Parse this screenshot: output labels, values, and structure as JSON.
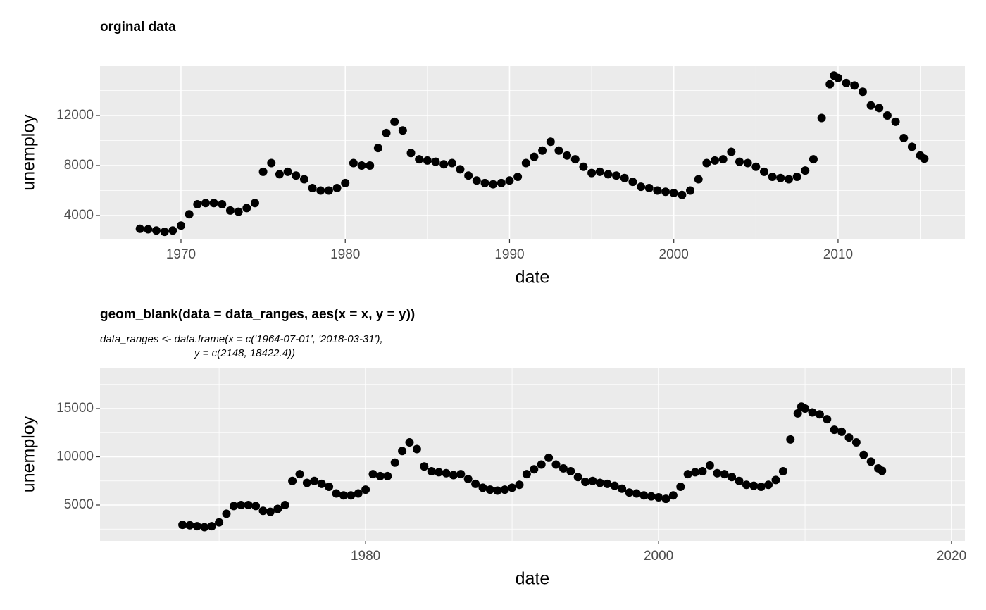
{
  "chart_data": [
    {
      "type": "scatter",
      "title": "orginal data",
      "x_label": "date",
      "y_label": "unemploy",
      "xlim": [
        1965.07,
        2017.72
      ],
      "xticks": [
        1970,
        1980,
        1990,
        2000,
        2010
      ],
      "minor_xticks": [
        1975,
        1985,
        1995,
        2005,
        2015
      ],
      "ylim": [
        2085,
        16000
      ],
      "yticks": [
        4000,
        8000,
        12000
      ],
      "minor_yticks": [
        6000,
        10000,
        14000
      ],
      "grid": true,
      "color": "#000000",
      "x": [
        1967.5,
        1968,
        1968.5,
        1969,
        1969.5,
        1970,
        1970.5,
        1971,
        1971.5,
        1972,
        1972.5,
        1973,
        1973.5,
        1974,
        1974.5,
        1975,
        1975.5,
        1976,
        1976.5,
        1977,
        1977.5,
        1978,
        1978.5,
        1979,
        1979.5,
        1980,
        1980.5,
        1981,
        1981.5,
        1982,
        1982.5,
        1983,
        1983.5,
        1984,
        1984.5,
        1985,
        1985.5,
        1986,
        1986.5,
        1987,
        1987.5,
        1988,
        1988.5,
        1989,
        1989.5,
        1990,
        1990.5,
        1991,
        1991.5,
        1992,
        1992.5,
        1993,
        1993.5,
        1994,
        1994.5,
        1995,
        1995.5,
        1996,
        1996.5,
        1997,
        1997.5,
        1998,
        1998.5,
        1999,
        1999.5,
        2000,
        2000.5,
        2001,
        2001.5,
        2002,
        2002.5,
        2003,
        2003.5,
        2004,
        2004.5,
        2005,
        2005.5,
        2006,
        2006.5,
        2007,
        2007.5,
        2008,
        2008.5,
        2009,
        2009.5,
        2009.75,
        2010,
        2010.5,
        2011,
        2011.5,
        2012,
        2012.5,
        2013,
        2013.5,
        2014,
        2014.5,
        2015,
        2015.25
      ],
      "values": [
        2944,
        2900,
        2800,
        2700,
        2800,
        3200,
        4100,
        4900,
        5000,
        5000,
        4900,
        4400,
        4300,
        4600,
        5000,
        7500,
        8200,
        7300,
        7500,
        7200,
        6900,
        6200,
        6000,
        6000,
        6200,
        6600,
        8200,
        8000,
        8000,
        9400,
        10600,
        11500,
        10800,
        9000,
        8500,
        8400,
        8300,
        8100,
        8200,
        7700,
        7200,
        6800,
        6600,
        6500,
        6600,
        6800,
        7100,
        8200,
        8700,
        9200,
        9900,
        9200,
        8800,
        8500,
        7900,
        7400,
        7500,
        7300,
        7200,
        7000,
        6700,
        6300,
        6200,
        6000,
        5900,
        5800,
        5650,
        6000,
        6900,
        8200,
        8400,
        8500,
        9100,
        8300,
        8200,
        7900,
        7500,
        7100,
        7000,
        6900,
        7100,
        7600,
        8500,
        11800,
        14500,
        15200,
        15000,
        14600,
        14400,
        13900,
        12800,
        12600,
        12000,
        11500,
        10200,
        9500,
        8800,
        8550
      ]
    },
    {
      "type": "scatter",
      "title": "geom_blank(data = data_ranges, aes(x = x, y = y))",
      "subtitle": [
        "data_ranges <- data.frame(x = c('1964-07-01', '2018-03-31'),",
        "y = c(2148, 18422.4))"
      ],
      "x_label": "date",
      "y_label": "unemploy",
      "xlim": [
        1961.87,
        2020.91
      ],
      "xticks": [
        1980,
        2000,
        2020
      ],
      "minor_xticks": [
        1970,
        1990,
        2010
      ],
      "ylim": [
        1277,
        19234
      ],
      "yticks": [
        5000,
        10000,
        15000
      ],
      "minor_yticks": [
        2500,
        7500,
        12500,
        17500
      ],
      "grid": true,
      "color": "#000000",
      "x": [
        1967.5,
        1968,
        1968.5,
        1969,
        1969.5,
        1970,
        1970.5,
        1971,
        1971.5,
        1972,
        1972.5,
        1973,
        1973.5,
        1974,
        1974.5,
        1975,
        1975.5,
        1976,
        1976.5,
        1977,
        1977.5,
        1978,
        1978.5,
        1979,
        1979.5,
        1980,
        1980.5,
        1981,
        1981.5,
        1982,
        1982.5,
        1983,
        1983.5,
        1984,
        1984.5,
        1985,
        1985.5,
        1986,
        1986.5,
        1987,
        1987.5,
        1988,
        1988.5,
        1989,
        1989.5,
        1990,
        1990.5,
        1991,
        1991.5,
        1992,
        1992.5,
        1993,
        1993.5,
        1994,
        1994.5,
        1995,
        1995.5,
        1996,
        1996.5,
        1997,
        1997.5,
        1998,
        1998.5,
        1999,
        1999.5,
        2000,
        2000.5,
        2001,
        2001.5,
        2002,
        2002.5,
        2003,
        2003.5,
        2004,
        2004.5,
        2005,
        2005.5,
        2006,
        2006.5,
        2007,
        2007.5,
        2008,
        2008.5,
        2009,
        2009.5,
        2009.75,
        2010,
        2010.5,
        2011,
        2011.5,
        2012,
        2012.5,
        2013,
        2013.5,
        2014,
        2014.5,
        2015,
        2015.25
      ],
      "values": [
        2944,
        2900,
        2800,
        2700,
        2800,
        3200,
        4100,
        4900,
        5000,
        5000,
        4900,
        4400,
        4300,
        4600,
        5000,
        7500,
        8200,
        7300,
        7500,
        7200,
        6900,
        6200,
        6000,
        6000,
        6200,
        6600,
        8200,
        8000,
        8000,
        9400,
        10600,
        11500,
        10800,
        9000,
        8500,
        8400,
        8300,
        8100,
        8200,
        7700,
        7200,
        6800,
        6600,
        6500,
        6600,
        6800,
        7100,
        8200,
        8700,
        9200,
        9900,
        9200,
        8800,
        8500,
        7900,
        7400,
        7500,
        7300,
        7200,
        7000,
        6700,
        6300,
        6200,
        6000,
        5900,
        5800,
        5650,
        6000,
        6900,
        8200,
        8400,
        8500,
        9100,
        8300,
        8200,
        7900,
        7500,
        7100,
        7000,
        6900,
        7100,
        7600,
        8500,
        11800,
        14500,
        15200,
        15000,
        14600,
        14400,
        13900,
        12800,
        12600,
        12000,
        11500,
        10200,
        9500,
        8800,
        8550
      ]
    }
  ]
}
